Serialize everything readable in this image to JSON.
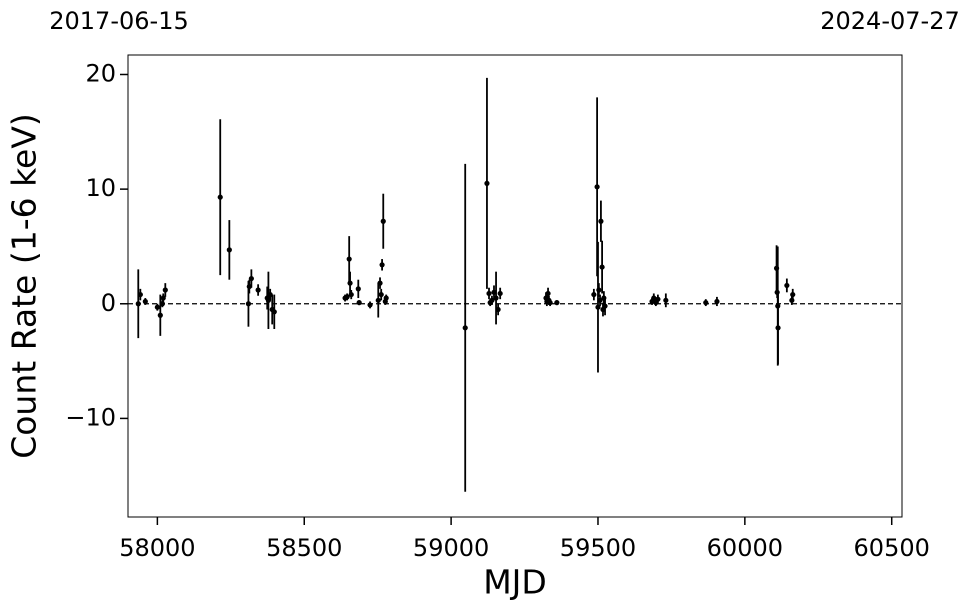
{
  "chart_data": {
    "type": "errorbar",
    "xlabel": "MJD",
    "ylabel": "Count Rate (1-6 keV)",
    "top_labels": [
      "2017-06-15",
      "2024-07-27"
    ],
    "color": "#000000",
    "hline": 0,
    "xlim": [
      57900,
      60535
    ],
    "ylim": [
      -18.6,
      21.7
    ],
    "xticks": [
      58000,
      58500,
      59000,
      59500,
      60000,
      60500
    ],
    "yticks": [
      {
        "value": -10,
        "label": "−10"
      },
      0,
      10,
      20
    ],
    "x": [
      57935,
      57942,
      57959,
      58000,
      58010,
      58017,
      58020,
      58027,
      58214,
      58245,
      58310,
      58313,
      58320,
      58343,
      58374,
      58378,
      58384,
      58391,
      58398,
      58639,
      58646,
      58653,
      58656,
      58660,
      58684,
      58687,
      58724,
      58752,
      58758,
      58762,
      58765,
      58769,
      58776,
      58779,
      59048,
      59122,
      59129,
      59133,
      59139,
      59146,
      59153,
      59160,
      59167,
      59323,
      59326,
      59330,
      59333,
      59337,
      59360,
      59486,
      59497,
      59500,
      59503,
      59507,
      59510,
      59514,
      59517,
      59520,
      59524,
      59684,
      59690,
      59697,
      59704,
      59731,
      59867,
      59905,
      60108,
      60110,
      60112,
      60113,
      60143,
      60160,
      60163
    ],
    "values": [
      0,
      0.8,
      0.2,
      -0.3,
      -1,
      0,
      0.5,
      1.2,
      9.3,
      4.7,
      0,
      1.5,
      2.2,
      1.2,
      0.5,
      0.3,
      0.8,
      -0.5,
      -0.7,
      0.5,
      0.6,
      3.9,
      1.8,
      0.8,
      1.3,
      0.1,
      -0.1,
      0.3,
      1.8,
      0.8,
      3.4,
      7.2,
      0.2,
      0.5,
      -2.1,
      10.5,
      0.9,
      0.1,
      0.3,
      1.0,
      0.5,
      -0.5,
      0.9,
      0.5,
      0.2,
      0.9,
      0.3,
      0.1,
      0.1,
      0.8,
      10.2,
      -0.3,
      1.2,
      0.3,
      7.2,
      3.2,
      -0.5,
      0.5,
      -0.2,
      0.2,
      0.5,
      0.1,
      0.4,
      0.3,
      0.1,
      0.2,
      3.1,
      1.0,
      -0.2,
      -2.1,
      1.6,
      0.3,
      0.8
    ],
    "errors": [
      3,
      0.5,
      0.3,
      0.3,
      1.8,
      0.3,
      0.4,
      0.6,
      6.8,
      2.6,
      2,
      0.6,
      0.8,
      0.5,
      1,
      2.5,
      0.5,
      1.3,
      1.5,
      0.3,
      0.3,
      2,
      1,
      0.4,
      0.8,
      0.2,
      0.3,
      1.5,
      0.5,
      0.5,
      0.5,
      2.4,
      0.3,
      0.3,
      14.3,
      9.2,
      0.5,
      0.3,
      0.4,
      0.6,
      2.3,
      0.5,
      0.5,
      0.5,
      0.4,
      0.5,
      0.4,
      0.3,
      0.2,
      0.5,
      7.8,
      5.7,
      0.6,
      0.5,
      1.8,
      2.3,
      0.6,
      0.6,
      0.8,
      0.3,
      0.4,
      0.3,
      0.4,
      0.6,
      0.3,
      0.4,
      2,
      0.5,
      5.2,
      3.2,
      0.6,
      0.4,
      0.5
    ]
  }
}
